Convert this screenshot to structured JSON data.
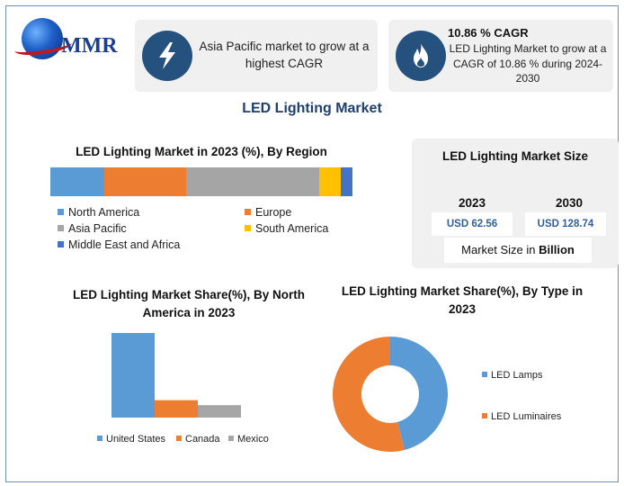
{
  "brand": {
    "logo_text": "MMR"
  },
  "cards": [
    {
      "icon": "lightning-icon",
      "text": "Asia Pacific market to grow at a highest CAGR"
    },
    {
      "icon": "flame-icon",
      "title": "10.86 % CAGR",
      "text": "LED Lighting Market to grow at a CAGR of 10.86 % during 2024-2030"
    }
  ],
  "colors": {
    "icon_circle": "#25517e",
    "blue": "#5b9bd5",
    "orange": "#ed7d31",
    "gray": "#a5a5a5",
    "yellow": "#ffc000",
    "dark_blue": "#4472c4",
    "title": "#1f3f6e"
  },
  "main_title": "LED Lighting Market",
  "market_size": {
    "title": "LED Lighting Market Size",
    "years": [
      {
        "year": "2023",
        "value": "USD 62.56"
      },
      {
        "year": "2030",
        "value": "USD 128.74"
      }
    ],
    "note_prefix": "Market Size in ",
    "note_unit": "Billion"
  },
  "chart_data": [
    {
      "type": "bar",
      "stacked": true,
      "orientation": "horizontal",
      "title": "LED Lighting Market in 2023 (%), By Region",
      "legend_placement": "bottom",
      "series": [
        {
          "name": "North America",
          "values": [
            18
          ],
          "color": "#5b9bd5"
        },
        {
          "name": "Europe",
          "values": [
            27
          ],
          "color": "#ed7d31"
        },
        {
          "name": "Asia Pacific",
          "values": [
            44
          ],
          "color": "#a5a5a5"
        },
        {
          "name": "South America",
          "values": [
            7
          ],
          "color": "#ffc000"
        },
        {
          "name": "Middle East and Africa",
          "values": [
            4
          ],
          "color": "#4472c4"
        }
      ]
    },
    {
      "type": "bar",
      "title": "LED Lighting Market Share(%), By North America in 2023",
      "legend_placement": "bottom",
      "categories": [
        "United States",
        "Canada",
        "Mexico"
      ],
      "values": [
        68,
        14,
        10
      ],
      "colors": [
        "#5b9bd5",
        "#ed7d31",
        "#a5a5a5"
      ],
      "grid": false
    },
    {
      "type": "pie",
      "donut": true,
      "title": "LED Lighting Market Share(%), By Type in 2023",
      "legend_placement": "right",
      "labels": [
        "LED Lamps",
        "LED Luminaires"
      ],
      "values": [
        46,
        54
      ],
      "colors": [
        "#5b9bd5",
        "#ed7d31"
      ]
    }
  ]
}
